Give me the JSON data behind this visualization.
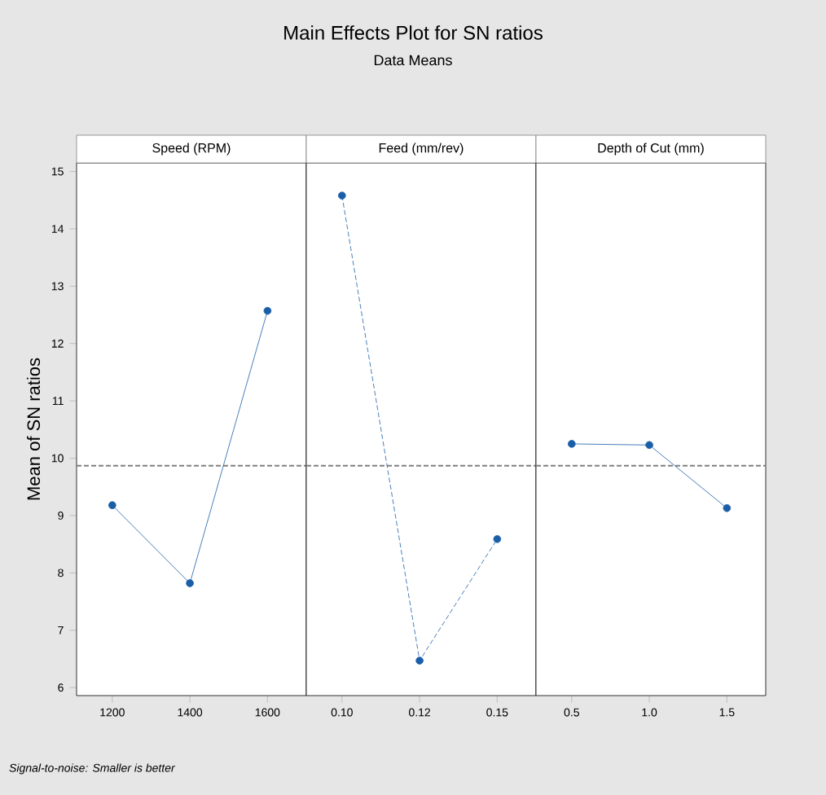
{
  "chart_data": [
    {
      "type": "other",
      "title": "Main Effects Plot for SN ratios",
      "subtitle": "Data Means",
      "annotations": [
        "Signal-to-noise: Smaller is better"
      ]
    },
    {
      "type": "line",
      "ylabel": "Mean of SN ratios",
      "xlabel": "Speed (RPM)",
      "categories": [
        "1200",
        "1400",
        "1600"
      ],
      "values": [
        9.18,
        7.82,
        12.57
      ],
      "color": "#1a5ea8",
      "marker": "circle",
      "line_style": "solid",
      "ylim": [
        5.86,
        15.15
      ],
      "yticks": [
        6,
        7,
        8,
        9,
        10,
        11,
        12,
        13,
        14,
        15
      ],
      "ref_lines": [
        {
          "axis": "y",
          "value": 9.87,
          "color": "#808080",
          "line_style": "dashed"
        }
      ],
      "grid": false
    },
    {
      "type": "line",
      "xlabel": "Feed (mm/rev)",
      "categories": [
        "0.10",
        "0.12",
        "0.15"
      ],
      "values": [
        14.58,
        6.47,
        8.59
      ],
      "color": "#1a5ea8",
      "marker": "circle",
      "line_style": "dashed",
      "ylim": [
        5.86,
        15.15
      ],
      "yticks": [
        6,
        7,
        8,
        9,
        10,
        11,
        12,
        13,
        14,
        15
      ],
      "tick_labels": "x",
      "ref_lines": [
        {
          "axis": "y",
          "value": 9.87,
          "color": "#808080",
          "line_style": "dashed"
        }
      ],
      "grid": false
    },
    {
      "type": "line",
      "xlabel": "Depth of Cut (mm)",
      "categories": [
        "0.5",
        "1.0",
        "1.5"
      ],
      "values": [
        10.25,
        10.23,
        9.13
      ],
      "color": "#1a5ea8",
      "marker": "circle",
      "line_style": "solid",
      "ylim": [
        5.86,
        15.15
      ],
      "yticks": [
        6,
        7,
        8,
        9,
        10,
        11,
        12,
        13,
        14,
        15
      ],
      "tick_labels": "x",
      "ref_lines": [
        {
          "axis": "y",
          "value": 9.87,
          "color": "#808080",
          "line_style": "dashed"
        }
      ],
      "grid": false
    }
  ]
}
